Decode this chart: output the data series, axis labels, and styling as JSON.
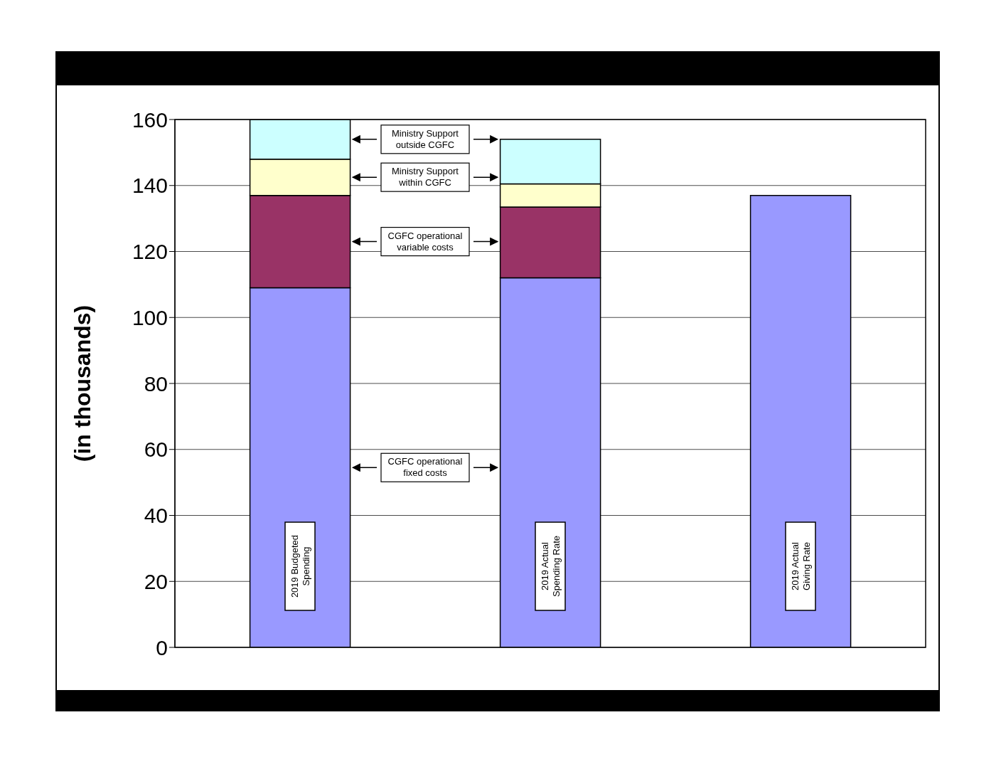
{
  "chart_data": {
    "type": "bar",
    "stacked": true,
    "ylabel": "(in thousands)",
    "categories": [
      "2019 Budgeted Spending",
      "2019 Actual Spending Rate",
      "2019 Actual Giving Rate"
    ],
    "series": [
      {
        "name": "CGFC operational fixed costs",
        "color": "#9999ff",
        "values": [
          109,
          112,
          137
        ]
      },
      {
        "name": "CGFC operational variable costs",
        "color": "#993366",
        "values": [
          28,
          21.5,
          null
        ]
      },
      {
        "name": "Ministry Support within CGFC",
        "color": "#ffffcc",
        "values": [
          11,
          7,
          null
        ]
      },
      {
        "name": "Ministry Support outside CGFC",
        "color": "#ccffff",
        "values": [
          12,
          13.5,
          null
        ]
      }
    ],
    "ylim": [
      0,
      160
    ],
    "yticks": [
      0,
      20,
      40,
      60,
      80,
      100,
      120,
      140,
      160
    ],
    "grid": "y",
    "legend": "left"
  }
}
